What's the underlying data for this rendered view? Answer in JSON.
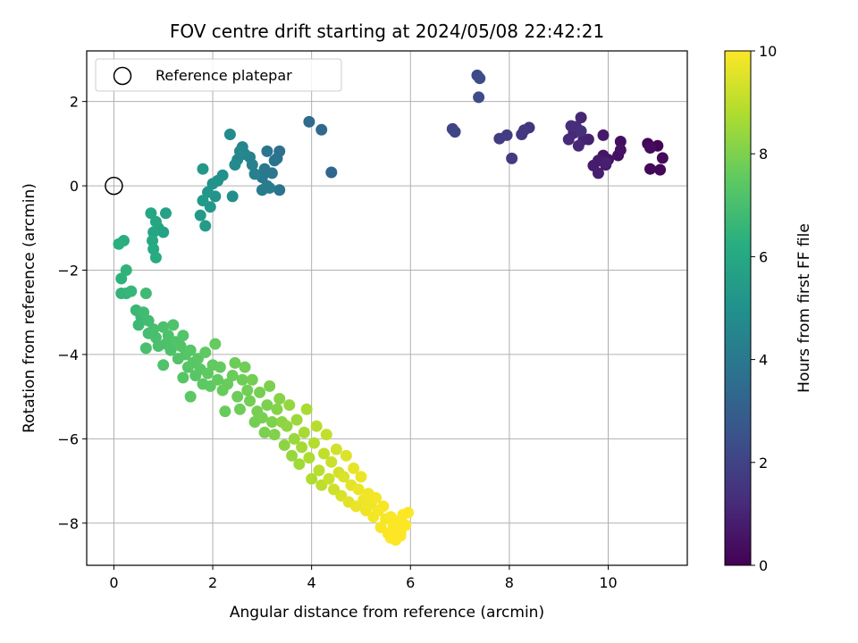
{
  "chart_data": {
    "type": "scatter",
    "title": "FOV centre drift starting at 2024/05/08 22:42:21",
    "xlabel": "Angular distance from reference (arcmin)",
    "ylabel": "Rotation from reference (arcmin)",
    "xlim": [
      -0.55,
      11.6
    ],
    "ylim": [
      -9.0,
      3.2
    ],
    "xticks": [
      0,
      2,
      4,
      6,
      8,
      10
    ],
    "yticks": [
      2,
      0,
      -2,
      -4,
      -6,
      -8
    ],
    "grid": true,
    "legend": {
      "placement": "upper-left",
      "entries": [
        "Reference platepar"
      ]
    },
    "reference_point": {
      "x": 0,
      "y": 0
    },
    "colorbar": {
      "label": "Hours from first FF file",
      "range": [
        0,
        10
      ],
      "ticks": [
        0,
        2,
        4,
        6,
        8,
        10
      ],
      "colormap": "viridis"
    },
    "series": [
      {
        "points": [
          [
            11.0,
            0.95,
            0.1
          ],
          [
            10.8,
            1.0,
            0.15
          ],
          [
            10.85,
            0.4,
            0.2
          ],
          [
            11.05,
            0.38,
            0.2
          ],
          [
            11.1,
            0.66,
            0.25
          ],
          [
            10.85,
            0.9,
            0.3
          ],
          [
            10.25,
            1.05,
            0.4
          ],
          [
            10.2,
            0.72,
            0.45
          ],
          [
            10.25,
            0.85,
            0.5
          ],
          [
            10.0,
            0.62,
            0.55
          ],
          [
            9.9,
            0.72,
            0.6
          ],
          [
            9.95,
            0.5,
            0.65
          ],
          [
            9.9,
            1.2,
            0.7
          ],
          [
            9.8,
            0.6,
            0.75
          ],
          [
            9.7,
            0.48,
            0.8
          ],
          [
            9.8,
            0.3,
            0.85
          ],
          [
            9.95,
            0.55,
            0.9
          ],
          [
            9.6,
            1.1,
            0.95
          ],
          [
            9.5,
            1.1,
            1.0
          ],
          [
            9.45,
            1.62,
            1.05
          ],
          [
            9.4,
            0.95,
            1.1
          ],
          [
            9.3,
            1.25,
            1.15
          ],
          [
            9.2,
            1.1,
            1.2
          ],
          [
            9.35,
            1.4,
            1.25
          ],
          [
            9.25,
            1.42,
            1.3
          ],
          [
            9.45,
            1.3,
            1.35
          ],
          [
            8.4,
            1.38,
            1.5
          ],
          [
            8.3,
            1.32,
            1.55
          ],
          [
            8.25,
            1.22,
            1.6
          ],
          [
            8.05,
            0.65,
            1.7
          ],
          [
            7.95,
            1.2,
            1.75
          ],
          [
            7.8,
            1.12,
            1.8
          ],
          [
            6.85,
            1.35,
            2.0
          ],
          [
            6.9,
            1.28,
            2.05
          ],
          [
            7.35,
            2.62,
            2.2
          ],
          [
            7.4,
            2.55,
            2.25
          ],
          [
            7.38,
            2.1,
            2.3
          ],
          [
            4.4,
            0.32,
            3.3
          ],
          [
            4.2,
            1.33,
            3.4
          ],
          [
            3.95,
            1.52,
            3.5
          ],
          [
            3.35,
            0.82,
            3.7
          ],
          [
            3.3,
            0.65,
            3.75
          ],
          [
            3.35,
            -0.1,
            3.8
          ],
          [
            3.25,
            0.6,
            3.85
          ],
          [
            3.1,
            0.82,
            3.9
          ],
          [
            3.05,
            0.4,
            3.95
          ],
          [
            3.2,
            0.3,
            4.0
          ],
          [
            3.0,
            0.2,
            4.05
          ],
          [
            3.1,
            0.0,
            4.1
          ],
          [
            3.0,
            -0.1,
            4.15
          ],
          [
            3.15,
            -0.05,
            4.2
          ],
          [
            2.85,
            0.28,
            4.3
          ],
          [
            2.8,
            0.5,
            4.35
          ],
          [
            2.75,
            0.68,
            4.4
          ],
          [
            2.6,
            0.92,
            4.5
          ],
          [
            2.65,
            0.75,
            4.55
          ],
          [
            2.5,
            0.62,
            4.6
          ],
          [
            2.55,
            0.82,
            4.65
          ],
          [
            2.45,
            0.5,
            4.7
          ],
          [
            2.35,
            1.22,
            4.75
          ],
          [
            2.4,
            -0.25,
            4.9
          ],
          [
            2.2,
            0.25,
            5.0
          ],
          [
            2.1,
            0.12,
            5.05
          ],
          [
            2.0,
            0.05,
            5.1
          ],
          [
            2.05,
            -0.25,
            5.15
          ],
          [
            1.9,
            -0.15,
            5.2
          ],
          [
            1.95,
            -0.5,
            5.25
          ],
          [
            1.8,
            0.4,
            5.3
          ],
          [
            1.8,
            -0.35,
            5.35
          ],
          [
            1.75,
            -0.7,
            5.4
          ],
          [
            1.85,
            -0.95,
            5.45
          ],
          [
            1.05,
            -0.65,
            5.7
          ],
          [
            1.0,
            -1.1,
            5.75
          ],
          [
            0.9,
            -1.0,
            5.8
          ],
          [
            0.8,
            -1.1,
            5.85
          ],
          [
            0.85,
            -0.85,
            5.9
          ],
          [
            0.75,
            -0.65,
            5.95
          ],
          [
            0.78,
            -1.3,
            6.0
          ],
          [
            0.8,
            -1.5,
            6.05
          ],
          [
            0.85,
            -1.7,
            6.1
          ],
          [
            0.2,
            -1.3,
            6.25
          ],
          [
            0.1,
            -1.38,
            6.3
          ],
          [
            0.15,
            -2.2,
            6.4
          ],
          [
            0.25,
            -2.0,
            6.45
          ],
          [
            0.15,
            -2.55,
            6.5
          ],
          [
            0.25,
            -2.55,
            6.55
          ],
          [
            0.35,
            -2.5,
            6.6
          ],
          [
            0.45,
            -2.95,
            6.65
          ],
          [
            0.55,
            -3.1,
            6.7
          ],
          [
            0.5,
            -3.3,
            6.75
          ],
          [
            0.65,
            -2.55,
            6.8
          ],
          [
            0.6,
            -3.0,
            6.85
          ],
          [
            0.7,
            -3.2,
            6.9
          ],
          [
            0.7,
            -3.5,
            6.95
          ],
          [
            0.8,
            -3.4,
            7.0
          ],
          [
            0.85,
            -3.6,
            7.02
          ],
          [
            0.65,
            -3.85,
            7.04
          ],
          [
            0.9,
            -3.8,
            7.06
          ],
          [
            1.0,
            -3.35,
            7.08
          ],
          [
            1.05,
            -3.75,
            7.1
          ],
          [
            1.1,
            -3.55,
            7.12
          ],
          [
            1.15,
            -3.9,
            7.14
          ],
          [
            1.0,
            -4.25,
            7.16
          ],
          [
            1.2,
            -3.3,
            7.18
          ],
          [
            1.25,
            -3.7,
            7.2
          ],
          [
            1.3,
            -4.1,
            7.22
          ],
          [
            1.35,
            -3.8,
            7.24
          ],
          [
            1.4,
            -3.55,
            7.26
          ],
          [
            1.45,
            -4.0,
            7.28
          ],
          [
            1.5,
            -4.3,
            7.3
          ],
          [
            1.4,
            -4.55,
            7.32
          ],
          [
            1.55,
            -3.9,
            7.34
          ],
          [
            1.6,
            -4.2,
            7.36
          ],
          [
            1.65,
            -4.5,
            7.38
          ],
          [
            1.7,
            -4.1,
            7.4
          ],
          [
            1.75,
            -4.35,
            7.42
          ],
          [
            1.55,
            -5.0,
            7.44
          ],
          [
            1.8,
            -4.7,
            7.46
          ],
          [
            1.85,
            -3.95,
            7.48
          ],
          [
            1.9,
            -4.45,
            7.5
          ],
          [
            1.95,
            -4.75,
            7.52
          ],
          [
            2.0,
            -4.25,
            7.54
          ],
          [
            2.1,
            -4.6,
            7.56
          ],
          [
            2.15,
            -4.3,
            7.58
          ],
          [
            2.05,
            -3.75,
            7.6
          ],
          [
            2.2,
            -4.85,
            7.62
          ],
          [
            2.25,
            -5.35,
            7.64
          ],
          [
            2.3,
            -4.7,
            7.66
          ],
          [
            2.4,
            -4.5,
            7.68
          ],
          [
            2.45,
            -4.2,
            7.7
          ],
          [
            2.5,
            -5.0,
            7.72
          ],
          [
            2.55,
            -5.3,
            7.74
          ],
          [
            2.6,
            -4.6,
            7.76
          ],
          [
            2.65,
            -4.3,
            7.78
          ],
          [
            2.7,
            -4.85,
            7.8
          ],
          [
            2.75,
            -5.1,
            7.82
          ],
          [
            2.8,
            -4.6,
            7.84
          ],
          [
            2.85,
            -5.6,
            7.86
          ],
          [
            2.9,
            -5.35,
            7.88
          ],
          [
            2.95,
            -4.9,
            7.9
          ],
          [
            3.0,
            -5.5,
            7.92
          ],
          [
            3.05,
            -5.85,
            7.94
          ],
          [
            3.1,
            -5.2,
            7.96
          ],
          [
            3.15,
            -4.75,
            7.98
          ],
          [
            3.2,
            -5.6,
            8.0
          ],
          [
            3.25,
            -5.9,
            8.05
          ],
          [
            3.3,
            -5.3,
            8.1
          ],
          [
            3.35,
            -5.05,
            8.15
          ],
          [
            3.4,
            -5.6,
            8.2
          ],
          [
            3.45,
            -6.15,
            8.25
          ],
          [
            3.5,
            -5.7,
            8.3
          ],
          [
            3.55,
            -5.2,
            8.35
          ],
          [
            3.6,
            -6.4,
            8.4
          ],
          [
            3.65,
            -6.0,
            8.45
          ],
          [
            3.7,
            -5.55,
            8.5
          ],
          [
            3.75,
            -6.6,
            8.55
          ],
          [
            3.8,
            -6.2,
            8.6
          ],
          [
            3.85,
            -5.85,
            8.65
          ],
          [
            3.9,
            -5.3,
            8.7
          ],
          [
            3.95,
            -6.45,
            8.75
          ],
          [
            4.0,
            -6.95,
            8.8
          ],
          [
            4.05,
            -6.1,
            8.85
          ],
          [
            4.1,
            -5.7,
            8.9
          ],
          [
            4.15,
            -6.75,
            8.95
          ],
          [
            4.2,
            -7.1,
            9.0
          ],
          [
            4.25,
            -6.35,
            9.05
          ],
          [
            4.3,
            -5.9,
            9.1
          ],
          [
            4.35,
            -6.95,
            9.15
          ],
          [
            4.4,
            -6.55,
            9.2
          ],
          [
            4.45,
            -7.2,
            9.25
          ],
          [
            4.5,
            -6.25,
            9.3
          ],
          [
            4.55,
            -6.8,
            9.35
          ],
          [
            4.6,
            -7.35,
            9.4
          ],
          [
            4.65,
            -6.9,
            9.45
          ],
          [
            4.7,
            -6.4,
            9.5
          ],
          [
            4.75,
            -7.5,
            9.55
          ],
          [
            4.8,
            -7.1,
            9.6
          ],
          [
            4.85,
            -6.7,
            9.65
          ],
          [
            4.9,
            -7.6,
            9.7
          ],
          [
            4.95,
            -7.2,
            9.72
          ],
          [
            5.0,
            -6.9,
            9.74
          ],
          [
            5.05,
            -7.45,
            9.76
          ],
          [
            5.1,
            -7.7,
            9.78
          ],
          [
            5.15,
            -7.3,
            9.8
          ],
          [
            5.2,
            -7.55,
            9.82
          ],
          [
            5.25,
            -7.85,
            9.84
          ],
          [
            5.3,
            -7.4,
            9.86
          ],
          [
            5.35,
            -7.7,
            9.88
          ],
          [
            5.4,
            -8.1,
            9.9
          ],
          [
            5.45,
            -7.6,
            9.91
          ],
          [
            5.5,
            -7.9,
            9.92
          ],
          [
            5.55,
            -8.25,
            9.93
          ],
          [
            5.6,
            -7.85,
            9.94
          ],
          [
            5.65,
            -8.1,
            9.95
          ],
          [
            5.7,
            -8.4,
            9.96
          ],
          [
            5.75,
            -7.95,
            9.97
          ],
          [
            5.8,
            -8.2,
            9.98
          ],
          [
            5.85,
            -7.8,
            9.99
          ],
          [
            5.9,
            -8.05,
            10.0
          ],
          [
            5.95,
            -7.75,
            10.0
          ],
          [
            5.6,
            -8.35,
            10.0
          ],
          [
            5.7,
            -8.2,
            10.0
          ],
          [
            5.8,
            -8.3,
            10.0
          ]
        ]
      }
    ]
  }
}
